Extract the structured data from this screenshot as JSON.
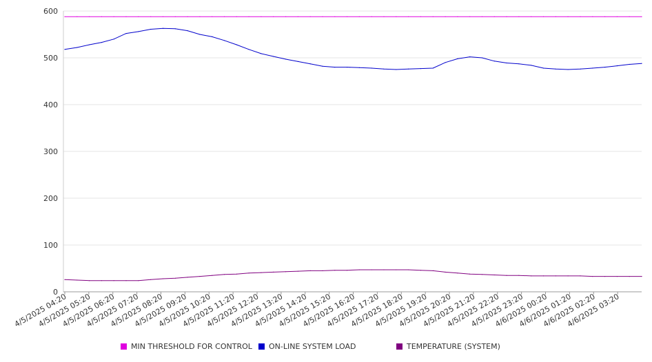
{
  "chart_data": {
    "type": "line",
    "title": "",
    "xlabel": "",
    "ylabel": "",
    "ylim": [
      0,
      600
    ],
    "yticks": [
      0,
      100,
      200,
      300,
      400,
      500,
      600
    ],
    "grid": true,
    "legend_position": "bottom",
    "x_tick_labels": [
      "4/5/2025 04:20",
      "4/5/2025 05:20",
      "4/5/2025 06:20",
      "4/5/2025 07:20",
      "4/5/2025 08:20",
      "4/5/2025 09:20",
      "4/5/2025 10:20",
      "4/5/2025 11:20",
      "4/5/2025 12:20",
      "4/5/2025 13:20",
      "4/5/2025 14:20",
      "4/5/2025 15:20",
      "4/5/2025 16:20",
      "4/5/2025 17:20",
      "4/5/2025 18:20",
      "4/5/2025 19:20",
      "4/5/2025 20:20",
      "4/5/2025 21:20",
      "4/5/2025 22:20",
      "4/5/2025 23:20",
      "4/6/2025 00:20",
      "4/6/2025 01:20",
      "4/6/2025 02:20",
      "4/6/2025 03:20"
    ],
    "x": [
      "4/5/2025 04:20",
      "4/5/2025 04:50",
      "4/5/2025 05:20",
      "4/5/2025 05:50",
      "4/5/2025 06:20",
      "4/5/2025 06:50",
      "4/5/2025 07:20",
      "4/5/2025 07:50",
      "4/5/2025 08:20",
      "4/5/2025 08:50",
      "4/5/2025 09:20",
      "4/5/2025 09:50",
      "4/5/2025 10:20",
      "4/5/2025 10:50",
      "4/5/2025 11:20",
      "4/5/2025 11:50",
      "4/5/2025 12:20",
      "4/5/2025 12:50",
      "4/5/2025 13:20",
      "4/5/2025 13:50",
      "4/5/2025 14:20",
      "4/5/2025 14:50",
      "4/5/2025 15:20",
      "4/5/2025 15:50",
      "4/5/2025 16:20",
      "4/5/2025 16:50",
      "4/5/2025 17:20",
      "4/5/2025 17:50",
      "4/5/2025 18:20",
      "4/5/2025 18:50",
      "4/5/2025 19:20",
      "4/5/2025 19:50",
      "4/5/2025 20:20",
      "4/5/2025 20:50",
      "4/5/2025 21:20",
      "4/5/2025 21:50",
      "4/5/2025 22:20",
      "4/5/2025 22:50",
      "4/5/2025 23:20",
      "4/5/2025 23:50",
      "4/6/2025 00:20",
      "4/6/2025 00:50",
      "4/6/2025 01:20",
      "4/6/2025 01:50",
      "4/6/2025 02:20",
      "4/6/2025 02:50",
      "4/6/2025 03:20",
      "4/6/2025 03:50"
    ],
    "series": [
      {
        "name": "MIN THRESHOLD FOR CONTROL",
        "color": "#e000e0",
        "values": [
          588,
          588,
          588,
          588,
          588,
          588,
          588,
          588,
          588,
          588,
          588,
          588,
          588,
          588,
          588,
          588,
          588,
          588,
          588,
          588,
          588,
          588,
          588,
          588,
          588,
          588,
          588,
          588,
          588,
          588,
          588,
          588,
          588,
          588,
          588,
          588,
          588,
          588,
          588,
          588,
          588,
          588,
          588,
          588,
          588,
          588,
          588,
          588
        ]
      },
      {
        "name": "ON-LINE SYSTEM LOAD",
        "color": "#0000cc",
        "values": [
          518,
          522,
          528,
          533,
          540,
          552,
          556,
          561,
          563,
          562,
          558,
          550,
          545,
          537,
          528,
          518,
          509,
          503,
          497,
          492,
          487,
          482,
          480,
          480,
          479,
          478,
          476,
          475,
          476,
          477,
          478,
          490,
          498,
          502,
          500,
          493,
          489,
          487,
          484,
          478,
          476,
          475,
          476,
          478,
          480,
          483,
          486,
          488
        ]
      },
      {
        "name": "TEMPERATURE (SYSTEM)",
        "color": "#800080",
        "values": [
          26,
          25,
          24,
          24,
          24,
          24,
          24,
          26,
          28,
          29,
          31,
          33,
          35,
          37,
          38,
          40,
          41,
          42,
          43,
          44,
          45,
          45,
          46,
          46,
          47,
          47,
          47,
          47,
          47,
          46,
          45,
          42,
          40,
          38,
          37,
          36,
          35,
          35,
          34,
          34,
          34,
          34,
          34,
          33,
          33,
          33,
          33,
          33
        ]
      }
    ]
  }
}
